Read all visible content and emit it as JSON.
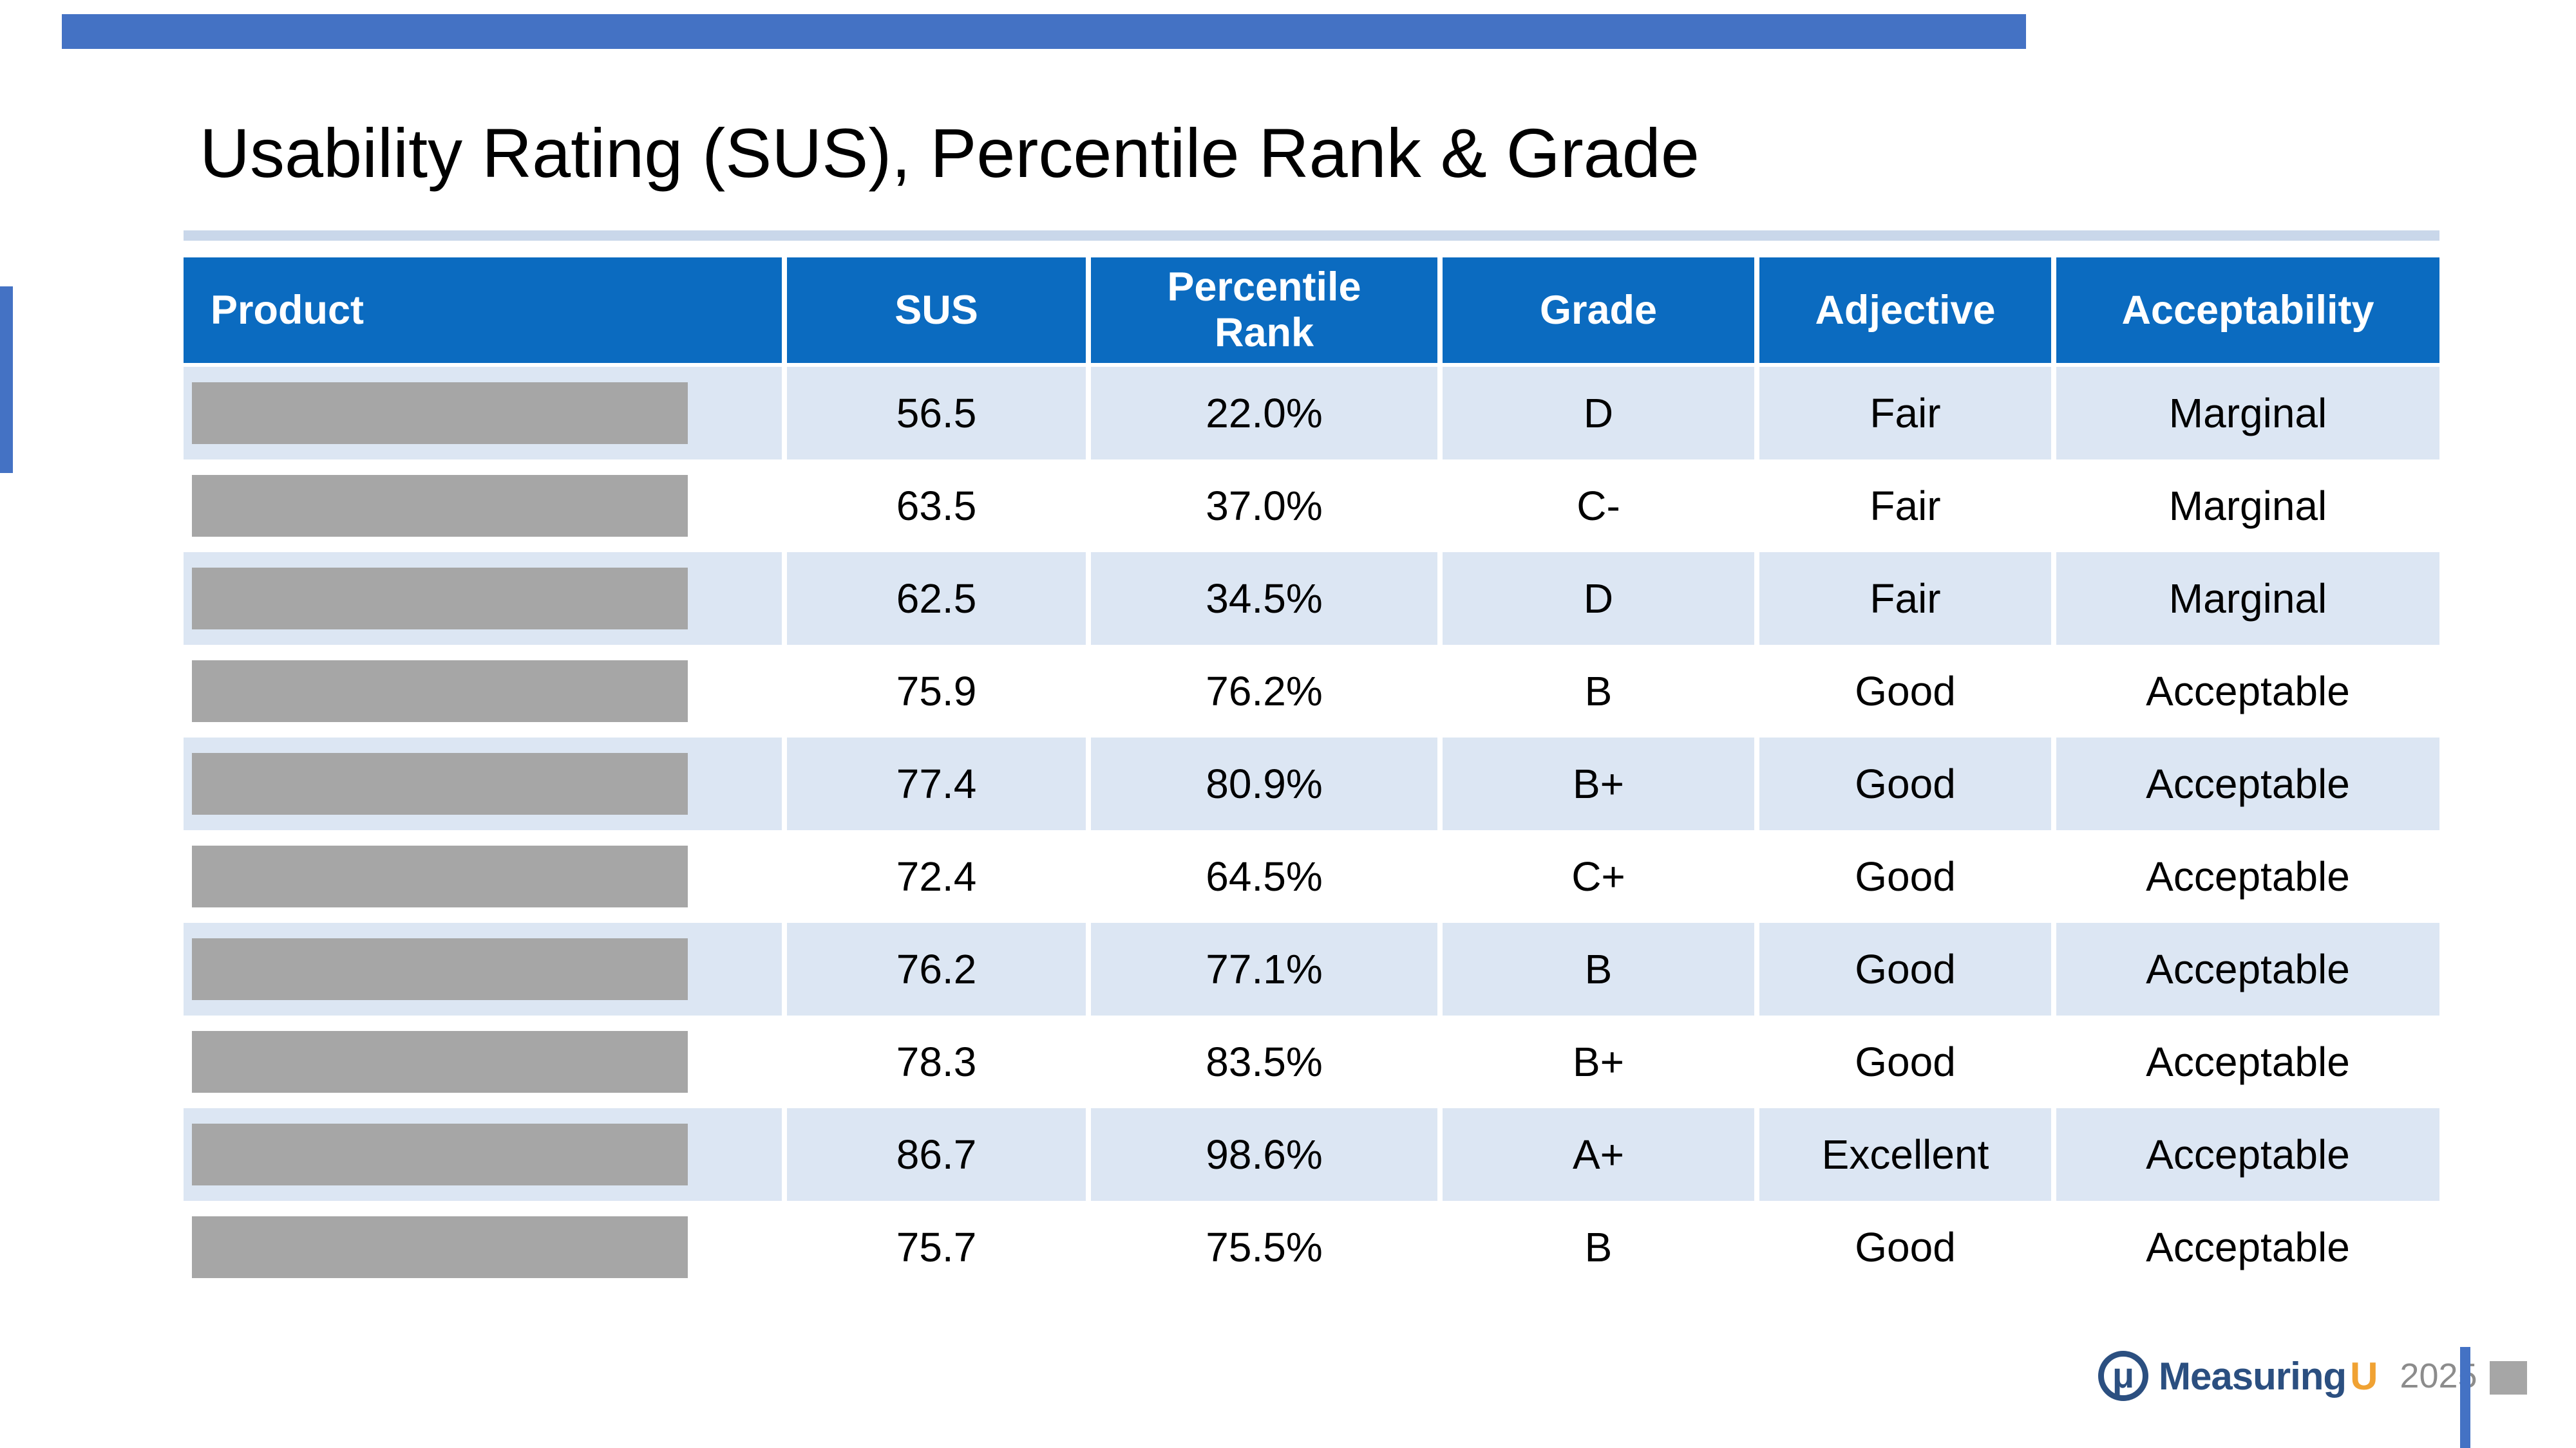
{
  "slide": {
    "title": "Usability Rating (SUS), Percentile Rank & Grade"
  },
  "table": {
    "columns": [
      "Product",
      "SUS",
      "Percentile Rank",
      "Grade",
      "Adjective",
      "Acceptability"
    ],
    "rows": [
      {
        "product_redacted": true,
        "sus": "56.5",
        "percentile_rank": "22.0%",
        "grade": "D",
        "adjective": "Fair",
        "acceptability": "Marginal"
      },
      {
        "product_redacted": true,
        "sus": "63.5",
        "percentile_rank": "37.0%",
        "grade": "C-",
        "adjective": "Fair",
        "acceptability": "Marginal"
      },
      {
        "product_redacted": true,
        "sus": "62.5",
        "percentile_rank": "34.5%",
        "grade": "D",
        "adjective": "Fair",
        "acceptability": "Marginal"
      },
      {
        "product_redacted": true,
        "sus": "75.9",
        "percentile_rank": "76.2%",
        "grade": "B",
        "adjective": "Good",
        "acceptability": "Acceptable"
      },
      {
        "product_redacted": true,
        "sus": "77.4",
        "percentile_rank": "80.9%",
        "grade": "B+",
        "adjective": "Good",
        "acceptability": "Acceptable"
      },
      {
        "product_redacted": true,
        "sus": "72.4",
        "percentile_rank": "64.5%",
        "grade": "C+",
        "adjective": "Good",
        "acceptability": "Acceptable"
      },
      {
        "product_redacted": true,
        "sus": "76.2",
        "percentile_rank": "77.1%",
        "grade": "B",
        "adjective": "Good",
        "acceptability": "Acceptable"
      },
      {
        "product_redacted": true,
        "sus": "78.3",
        "percentile_rank": "83.5%",
        "grade": "B+",
        "adjective": "Good",
        "acceptability": "Acceptable"
      },
      {
        "product_redacted": true,
        "sus": "86.7",
        "percentile_rank": "98.6%",
        "grade": "A+",
        "adjective": "Excellent",
        "acceptability": "Acceptable"
      },
      {
        "product_redacted": true,
        "sus": "75.7",
        "percentile_rank": "75.5%",
        "grade": "B",
        "adjective": "Good",
        "acceptability": "Acceptable"
      }
    ]
  },
  "footer": {
    "logo_mu": "μ",
    "brand_measuring": "Measuring",
    "brand_u": "U",
    "year": "2025"
  },
  "colors": {
    "header_blue": "#0B6BC0",
    "band_light_blue": "#DCE6F3",
    "accent_blue": "#4472C4",
    "title_rule_blue": "#C9D7EA",
    "redaction_gray": "#A6A6A6",
    "logo_navy": "#2B4F80",
    "logo_orange": "#F0A233",
    "year_gray": "#8C8C8C"
  }
}
